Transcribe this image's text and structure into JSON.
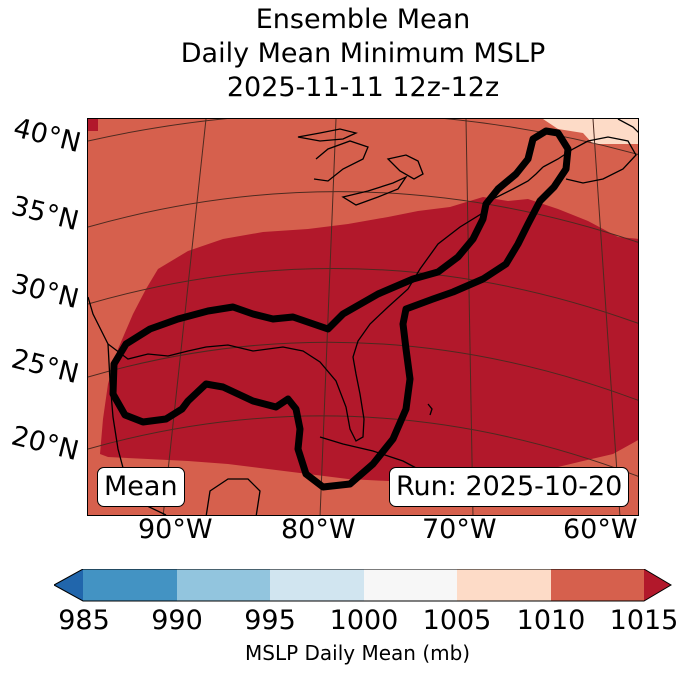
{
  "title": {
    "line1": "Ensemble Mean",
    "line2": "Daily Mean Minimum MSLP",
    "line3": "2025-11-11 12z-12z"
  },
  "map": {
    "lat_labels": [
      "40°N",
      "35°N",
      "30°N",
      "25°N",
      "20°N"
    ],
    "lon_labels": [
      "90°W",
      "80°W",
      "70°W",
      "60°W"
    ],
    "mean_label": "Mean",
    "run_label": "Run: 2025-10-20"
  },
  "colorbar": {
    "ticks": [
      "985",
      "990",
      "995",
      "1000",
      "1005",
      "1010",
      "1015"
    ],
    "label": "MSLP Daily Mean (mb)",
    "colors": [
      "#2166ac",
      "#4393c3",
      "#92c5de",
      "#d1e5f0",
      "#f7f7f7",
      "#fddbc7",
      "#d6604d",
      "#b2182b"
    ]
  }
}
